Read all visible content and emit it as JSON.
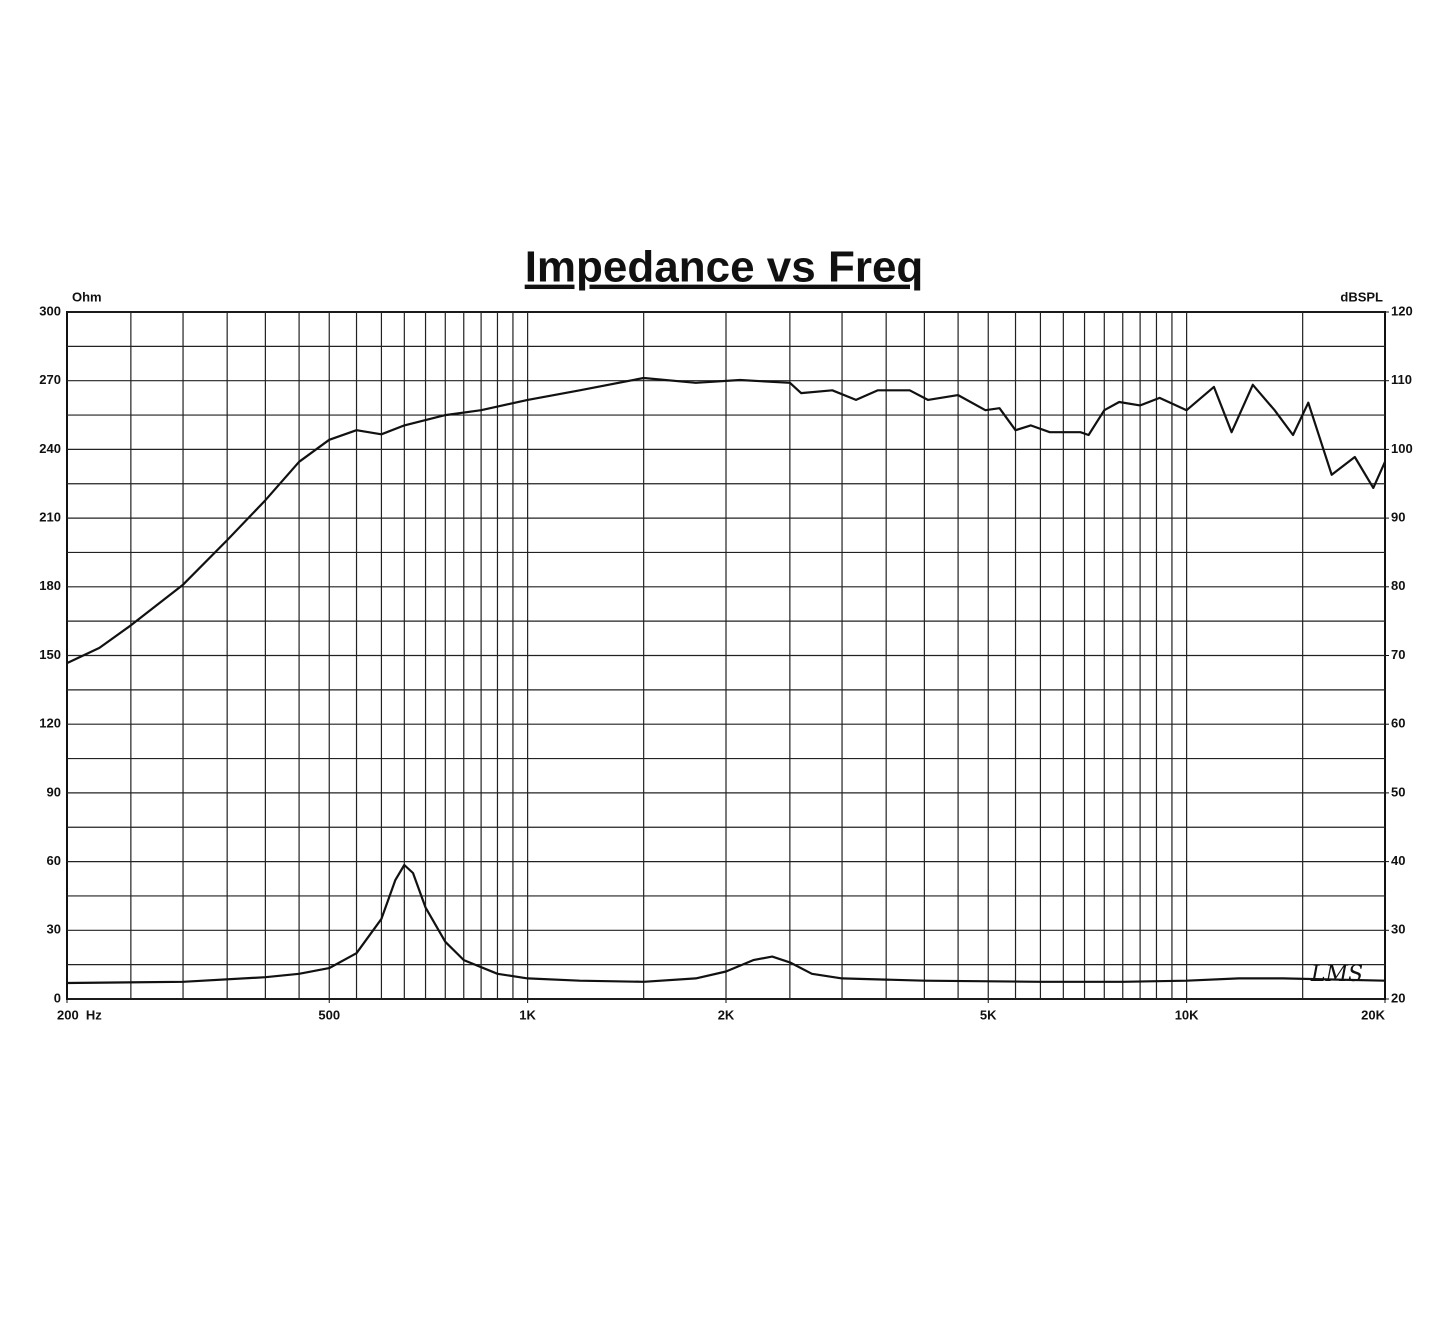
{
  "chart_data": {
    "type": "line",
    "title": "Impedance vs Freq",
    "y_label": "Ohm",
    "y2_label": "dBSPL",
    "annotation": "LMS",
    "log_x": true,
    "grid": true,
    "xlim": [
      200,
      20000
    ],
    "xticks": [
      {
        "value": 200,
        "label": "200  Hz"
      },
      500,
      {
        "value": 1000,
        "label": "1K"
      },
      {
        "value": 2000,
        "label": "2K"
      },
      {
        "value": 5000,
        "label": "5K"
      },
      {
        "value": 10000,
        "label": "10K"
      },
      {
        "value": 20000,
        "label": "20K"
      }
    ],
    "xgrid": [
      250,
      300,
      350,
      400,
      450,
      500,
      550,
      600,
      650,
      700,
      750,
      800,
      850,
      900,
      950,
      1000,
      1500,
      2000,
      2500,
      3000,
      3500,
      4000,
      4500,
      5000,
      5500,
      6000,
      6500,
      7000,
      7500,
      8000,
      8500,
      9000,
      9500,
      10000,
      15000
    ],
    "ylim": [
      0,
      300
    ],
    "yticks": [
      0,
      30,
      60,
      90,
      120,
      150,
      180,
      210,
      240,
      270,
      300
    ],
    "ygrid": [
      15,
      45,
      75,
      105,
      135,
      165,
      195,
      225,
      255,
      285
    ],
    "y2lim": [
      20,
      120
    ],
    "y2ticks": [
      20,
      30,
      40,
      50,
      60,
      70,
      80,
      90,
      100,
      110,
      120
    ],
    "series": [
      {
        "color": "#111111",
        "axis": "y2",
        "x": [
          200,
          224,
          250,
          300,
          350,
          400,
          450,
          500,
          550,
          600,
          650,
          750,
          850,
          1000,
          1200,
          1500,
          1800,
          2100,
          2500,
          2600,
          2900,
          3150,
          3400,
          3800,
          4050,
          4500,
          4950,
          5200,
          5500,
          5800,
          6200,
          6900,
          7100,
          7500,
          7900,
          8500,
          9100,
          10000,
          11000,
          11700,
          12600,
          13600,
          14500,
          15300,
          16600,
          18000,
          19200,
          20000
        ],
        "values": [
          68.9,
          71.1,
          74.4,
          80.3,
          86.8,
          92.6,
          98.2,
          101.4,
          102.8,
          102.2,
          103.5,
          105,
          105.7,
          107.2,
          108.6,
          110.4,
          109.7,
          110.1,
          109.7,
          108.2,
          108.6,
          107.2,
          108.6,
          108.6,
          107.2,
          107.9,
          105.7,
          106,
          102.8,
          103.5,
          102.5,
          102.5,
          102.1,
          105.7,
          106.9,
          106.4,
          107.5,
          105.7,
          109.1,
          102.5,
          109.4,
          105.7,
          102.1,
          106.8,
          96.3,
          98.9,
          94.4,
          98.2
        ]
      },
      {
        "color": "#111111",
        "x": [
          200,
          300,
          400,
          450,
          500,
          550,
          600,
          630,
          650,
          670,
          700,
          750,
          800,
          900,
          1000,
          1200,
          1500,
          1800,
          2000,
          2200,
          2350,
          2500,
          2700,
          3000,
          4000,
          6000,
          8000,
          10000,
          12000,
          14000,
          20000
        ],
        "values": [
          7,
          7.5,
          9.5,
          11,
          13.5,
          20,
          35,
          52,
          58.5,
          55,
          40,
          25,
          17,
          11,
          9,
          8,
          7.5,
          9,
          12,
          17,
          18.5,
          16,
          11,
          9,
          8,
          7.5,
          7.5,
          8,
          9,
          9,
          8
        ]
      }
    ]
  }
}
